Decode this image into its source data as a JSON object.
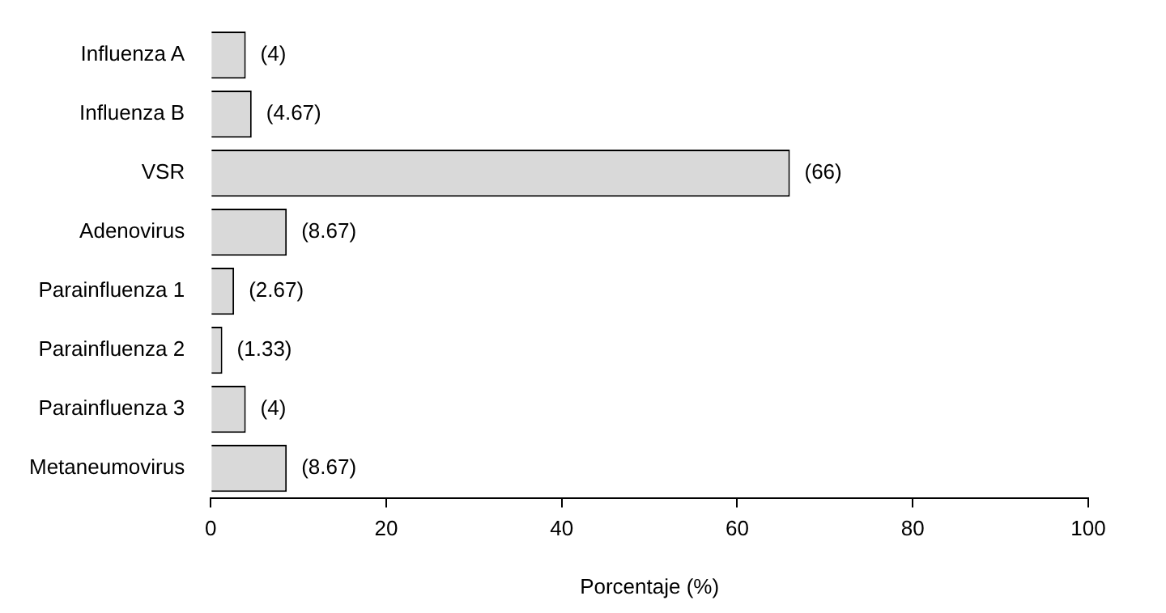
{
  "chart_data": {
    "type": "bar",
    "orientation": "horizontal",
    "xlabel": "Porcentaje (%)",
    "categories": [
      "Influenza A",
      "Influenza B",
      "VSR",
      "Adenovirus",
      "Parainfluenza 1",
      "Parainfluenza 2",
      "Parainfluenza 3",
      "Metaneumovirus"
    ],
    "values": [
      4,
      4.67,
      66,
      8.67,
      2.67,
      1.33,
      4,
      8.67
    ],
    "value_labels": [
      "(4)",
      "(4.67)",
      "(66)",
      "(8.67)",
      "(2.67)",
      "(1.33)",
      "(4)",
      "(8.67)"
    ],
    "color": "#d9d9d9",
    "xlim": [
      0,
      100
    ],
    "xticks": [
      0,
      20,
      40,
      60,
      80,
      100
    ],
    "grid": false,
    "legend": false
  }
}
